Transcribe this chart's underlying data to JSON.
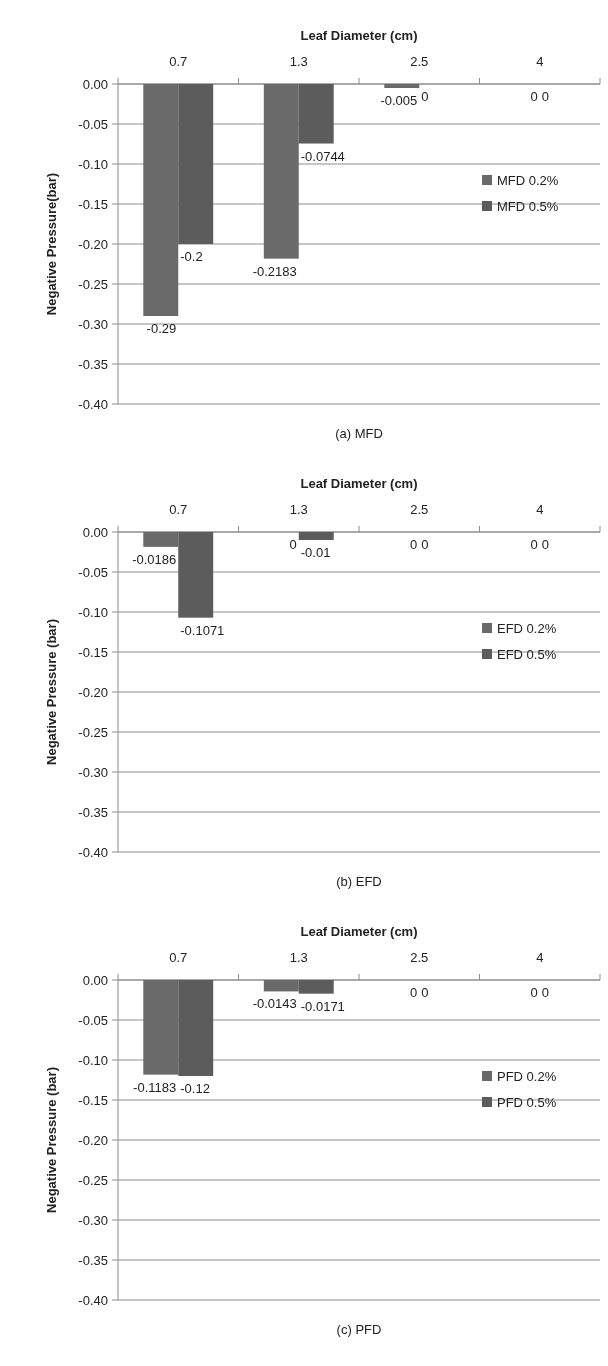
{
  "chart_data": [
    {
      "type": "bar",
      "title": "(a) MFD",
      "xlabel": "Leaf Diameter (cm)",
      "ylabel": "Negative Pressure(bar)",
      "categories": [
        "0.7",
        "1.3",
        "2.5",
        "4"
      ],
      "series": [
        {
          "name": "MFD 0.2%",
          "color": "#6a6a6a",
          "values": [
            -0.29,
            -0.2183,
            -0.005,
            0
          ]
        },
        {
          "name": "MFD 0.5%",
          "color": "#5c5c5c",
          "values": [
            -0.2,
            -0.0744,
            0,
            0
          ]
        }
      ],
      "ylim": [
        -0.4,
        0
      ],
      "yticks": [
        {
          "value": 0,
          "label": "0.00"
        },
        {
          "value": -0.05,
          "label": "-0.05"
        },
        {
          "value": -0.1,
          "label": "-0.10"
        },
        {
          "value": -0.15,
          "label": "-0.15"
        },
        {
          "value": -0.2,
          "label": "-0.20"
        },
        {
          "value": -0.25,
          "label": "-0.25"
        },
        {
          "value": -0.3,
          "label": "-0.30"
        },
        {
          "value": -0.35,
          "label": "-0.35"
        },
        {
          "value": -0.4,
          "label": "-0.40"
        }
      ],
      "grid": "y",
      "legend": "right",
      "data_labels": true
    },
    {
      "type": "bar",
      "title": "(b) EFD",
      "xlabel": "Leaf Diameter (cm)",
      "ylabel": "Negative Pressure (bar)",
      "categories": [
        "0.7",
        "1.3",
        "2.5",
        "4"
      ],
      "series": [
        {
          "name": "EFD 0.2%",
          "color": "#6a6a6a",
          "values": [
            -0.0186,
            0,
            0,
            0
          ]
        },
        {
          "name": "EFD 0.5%",
          "color": "#5c5c5c",
          "values": [
            -0.1071,
            -0.01,
            0,
            0
          ]
        }
      ],
      "ylim": [
        -0.4,
        0
      ],
      "yticks": [
        {
          "value": 0,
          "label": "0.00"
        },
        {
          "value": -0.05,
          "label": "-0.05"
        },
        {
          "value": -0.1,
          "label": "-0.10"
        },
        {
          "value": -0.15,
          "label": "-0.15"
        },
        {
          "value": -0.2,
          "label": "-0.20"
        },
        {
          "value": -0.25,
          "label": "-0.25"
        },
        {
          "value": -0.3,
          "label": "-0.30"
        },
        {
          "value": -0.35,
          "label": "-0.35"
        },
        {
          "value": -0.4,
          "label": "-0.40"
        }
      ],
      "grid": "y",
      "legend": "right",
      "data_labels": true
    },
    {
      "type": "bar",
      "title": "(c) PFD",
      "xlabel": "Leaf Diameter (cm)",
      "ylabel": "Negative Pressure (bar)",
      "categories": [
        "0.7",
        "1.3",
        "2.5",
        "4"
      ],
      "series": [
        {
          "name": "PFD 0.2%",
          "color": "#6a6a6a",
          "values": [
            -0.1183,
            -0.0143,
            0,
            0
          ]
        },
        {
          "name": "PFD 0.5%",
          "color": "#5c5c5c",
          "values": [
            -0.12,
            -0.0171,
            0,
            0
          ]
        }
      ],
      "ylim": [
        -0.4,
        0
      ],
      "yticks": [
        {
          "value": 0,
          "label": "0.00"
        },
        {
          "value": -0.05,
          "label": "-0.05"
        },
        {
          "value": -0.1,
          "label": "-0.10"
        },
        {
          "value": -0.15,
          "label": "-0.15"
        },
        {
          "value": -0.2,
          "label": "-0.20"
        },
        {
          "value": -0.25,
          "label": "-0.25"
        },
        {
          "value": -0.3,
          "label": "-0.30"
        },
        {
          "value": -0.35,
          "label": "-0.35"
        },
        {
          "value": -0.4,
          "label": "-0.40"
        }
      ],
      "grid": "y",
      "legend": "right",
      "data_labels": true
    }
  ]
}
